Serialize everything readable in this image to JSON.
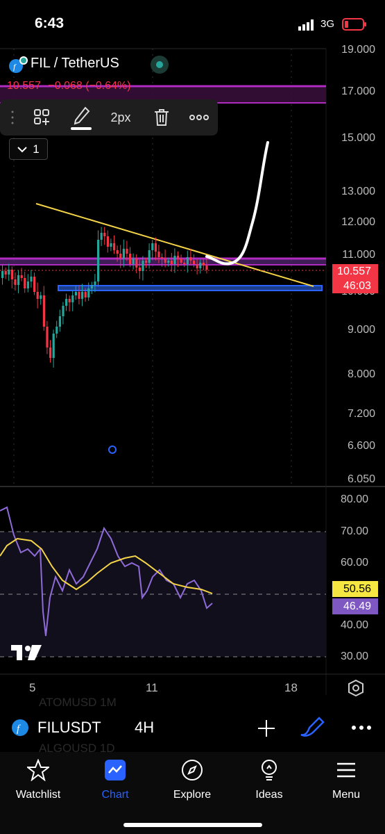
{
  "status_bar": {
    "time": "6:43",
    "network": "3G"
  },
  "header": {
    "symbol_title": "FIL / TetherUS",
    "last_price": "10.557",
    "change": "−0.068",
    "change_pct": "(−0.64%)"
  },
  "drawing_toolbar": {
    "stroke_width": "2px"
  },
  "panel_collapse": {
    "count": "1"
  },
  "price_axis": [
    "19.000",
    "17.000",
    "15.000",
    "13.000",
    "12.000",
    "11.000",
    "10.000",
    "9.000",
    "8.000",
    "7.200",
    "6.600",
    "6.050"
  ],
  "price_badge": {
    "price": "10.557",
    "countdown": "46:03"
  },
  "rsi_axis": [
    "80.00",
    "70.00",
    "60.00",
    "50.00",
    "40.00",
    "30.00"
  ],
  "rsi_badges": {
    "ma": "50.56",
    "rsi": "46.49"
  },
  "time_axis": [
    "5",
    "11",
    "18"
  ],
  "symbol_bar": {
    "symbol": "FILUSDT",
    "interval": "4H",
    "ghost_top": "ATOMUSD   1M",
    "ghost_bottom": "ALGOUSD   1D"
  },
  "bottom_nav": [
    {
      "label": "Watchlist",
      "icon": "star-icon"
    },
    {
      "label": "Chart",
      "icon": "chart-icon"
    },
    {
      "label": "Explore",
      "icon": "compass-icon"
    },
    {
      "label": "Ideas",
      "icon": "lightbulb-icon"
    },
    {
      "label": "Menu",
      "icon": "hamburger-icon"
    }
  ],
  "colors": {
    "up": "#26a69a",
    "down": "#f23645",
    "accent": "#2962ff",
    "rsi": "#7e57c2",
    "ma": "#fdd835",
    "level": "#9c27b0"
  }
}
